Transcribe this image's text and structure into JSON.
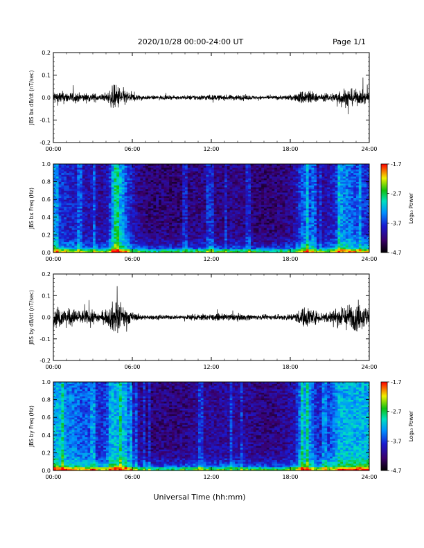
{
  "header": {
    "title": "2020/10/28  00:00-24:00 UT",
    "page": "Page 1/1"
  },
  "footer": {
    "xlabel": "Universal Time (hh:mm)"
  },
  "chart_data": [
    {
      "type": "line",
      "ylabel": "JBS bx dB/dt (nT/sec)",
      "xlabel": "",
      "xlim": [
        "00:00",
        "24:00"
      ],
      "ylim": [
        -0.2,
        0.2
      ],
      "x_ticks": [
        "00:00",
        "06:00",
        "12:00",
        "18:00",
        "24:00"
      ],
      "y_ticks": [
        "-0.2",
        "-0.1",
        "0.0",
        "0.1",
        "0.2"
      ],
      "series": [
        {
          "values": [
            0.03,
            0.03,
            0.025,
            0.025,
            0.02,
            0.02,
            0.02,
            0.015,
            0.02,
            0.06,
            0.05,
            0.03,
            0.018,
            0.012,
            0.009,
            0.008,
            0.01,
            0.009,
            0.008,
            0.009,
            0.01,
            0.012,
            0.012,
            0.013,
            0.012,
            0.012,
            0.012,
            0.013,
            0.012,
            0.011,
            0.009,
            0.008,
            0.008,
            0.009,
            0.01,
            0.012,
            0.015,
            0.035,
            0.04,
            0.02,
            0.015,
            0.02,
            0.025,
            0.045,
            0.04,
            0.035,
            0.03,
            0.03
          ]
        }
      ]
    },
    {
      "type": "heatmap",
      "ylabel": "JBS bx Freq (Hz)",
      "xlabel": "",
      "xlim": [
        "00:00",
        "24:00"
      ],
      "ylim": [
        0.0,
        1.0
      ],
      "x_ticks": [
        "00:00",
        "06:00",
        "12:00",
        "18:00",
        "24:00"
      ],
      "y_ticks": [
        "0.0",
        "0.2",
        "0.4",
        "0.6",
        "0.8",
        "1.0"
      ],
      "colorbar": {
        "label": "Log₁₀ Power",
        "ticks": [
          "-1.7",
          "-2.7",
          "-3.7",
          "-4.7"
        ],
        "range": [
          -4.7,
          -1.7
        ]
      }
    },
    {
      "type": "line",
      "ylabel": "JBS by dB/dt (nT/sec)",
      "xlabel": "",
      "xlim": [
        "00:00",
        "24:00"
      ],
      "ylim": [
        -0.2,
        0.2
      ],
      "x_ticks": [
        "00:00",
        "06:00",
        "12:00",
        "18:00",
        "24:00"
      ],
      "y_ticks": [
        "-0.2",
        "-0.1",
        "0.0",
        "0.1",
        "0.2"
      ],
      "series": [
        {
          "values": [
            0.05,
            0.05,
            0.04,
            0.04,
            0.035,
            0.035,
            0.03,
            0.025,
            0.035,
            0.08,
            0.07,
            0.04,
            0.02,
            0.013,
            0.01,
            0.01,
            0.012,
            0.01,
            0.01,
            0.011,
            0.012,
            0.014,
            0.015,
            0.016,
            0.015,
            0.015,
            0.016,
            0.017,
            0.015,
            0.014,
            0.012,
            0.011,
            0.011,
            0.012,
            0.013,
            0.016,
            0.02,
            0.045,
            0.05,
            0.03,
            0.025,
            0.03,
            0.04,
            0.055,
            0.06,
            0.065,
            0.06,
            0.055
          ]
        }
      ]
    },
    {
      "type": "heatmap",
      "ylabel": "JBS by Freq (Hz)",
      "xlabel": "",
      "xlim": [
        "00:00",
        "24:00"
      ],
      "ylim": [
        0.0,
        1.0
      ],
      "x_ticks": [
        "00:00",
        "06:00",
        "12:00",
        "18:00",
        "24:00"
      ],
      "y_ticks": [
        "0.0",
        "0.2",
        "0.4",
        "0.6",
        "0.8",
        "1.0"
      ],
      "colorbar": {
        "label": "Log₁₀ Power",
        "ticks": [
          "-1.7",
          "-2.7",
          "-3.7",
          "-4.7"
        ],
        "range": [
          -4.7,
          -1.7
        ]
      }
    }
  ]
}
